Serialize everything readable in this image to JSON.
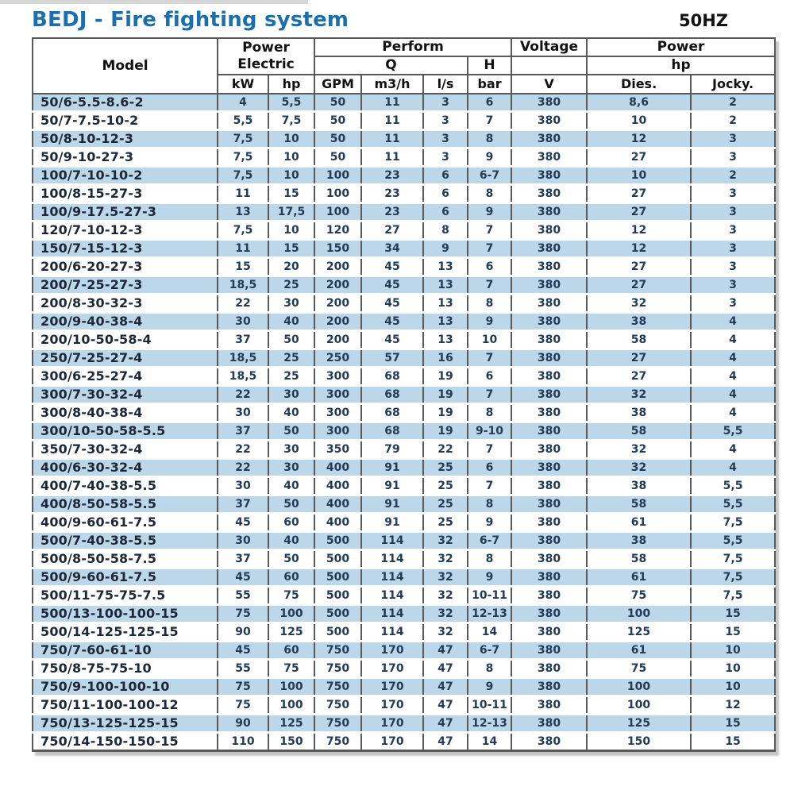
{
  "page": {
    "title": "BEDJ - Fire fighting system",
    "frequency": "50HZ"
  },
  "table": {
    "header": {
      "model": "Model",
      "power_electric": [
        "Power",
        "Electric"
      ],
      "perform": "Perform",
      "q": "Q",
      "h": "H",
      "voltage": "Voltage",
      "power": "Power",
      "hp": "hp",
      "units": [
        "kW",
        "hp",
        "GPM",
        "m3/h",
        "l/s",
        "bar",
        "V",
        "Dies.",
        "Jocky."
      ]
    }
  },
  "colors": {
    "title_blue": "#1c6fad",
    "row_blue": "#bcd6ea",
    "border_dark": "#595959",
    "data_text": "#243b55",
    "model_text": "#1c2836",
    "header_text": "#111111",
    "shadow": "#c6c6c6"
  },
  "chart_data": {
    "type": "table",
    "title": "BEDJ - Fire fighting system",
    "subtitle": "50HZ",
    "columns": [
      "Model",
      "Power Electric kW",
      "Power Electric hp",
      "Perform Q GPM",
      "Perform Q m3/h",
      "Perform Q l/s",
      "Perform H bar",
      "Voltage V",
      "Power hp Dies.",
      "Power hp Jocky."
    ],
    "rows": [
      [
        "50/6-5.5-8.6-2",
        "4",
        "5,5",
        "50",
        "11",
        "3",
        "6",
        "380",
        "8,6",
        "2"
      ],
      [
        "50/7-7.5-10-2",
        "5,5",
        "7,5",
        "50",
        "11",
        "3",
        "7",
        "380",
        "10",
        "2"
      ],
      [
        "50/8-10-12-3",
        "7,5",
        "10",
        "50",
        "11",
        "3",
        "8",
        "380",
        "12",
        "3"
      ],
      [
        "50/9-10-27-3",
        "7,5",
        "10",
        "50",
        "11",
        "3",
        "9",
        "380",
        "27",
        "3"
      ],
      [
        "100/7-10-10-2",
        "7,5",
        "10",
        "100",
        "23",
        "6",
        "6-7",
        "380",
        "10",
        "2"
      ],
      [
        "100/8-15-27-3",
        "11",
        "15",
        "100",
        "23",
        "6",
        "8",
        "380",
        "27",
        "3"
      ],
      [
        "100/9-17.5-27-3",
        "13",
        "17,5",
        "100",
        "23",
        "6",
        "9",
        "380",
        "27",
        "3"
      ],
      [
        "120/7-10-12-3",
        "7,5",
        "10",
        "120",
        "27",
        "8",
        "7",
        "380",
        "12",
        "3"
      ],
      [
        "150/7-15-12-3",
        "11",
        "15",
        "150",
        "34",
        "9",
        "7",
        "380",
        "12",
        "3"
      ],
      [
        "200/6-20-27-3",
        "15",
        "20",
        "200",
        "45",
        "13",
        "6",
        "380",
        "27",
        "3"
      ],
      [
        "200/7-25-27-3",
        "18,5",
        "25",
        "200",
        "45",
        "13",
        "7",
        "380",
        "27",
        "3"
      ],
      [
        "200/8-30-32-3",
        "22",
        "30",
        "200",
        "45",
        "13",
        "8",
        "380",
        "32",
        "3"
      ],
      [
        "200/9-40-38-4",
        "30",
        "40",
        "200",
        "45",
        "13",
        "9",
        "380",
        "38",
        "4"
      ],
      [
        "200/10-50-58-4",
        "37",
        "50",
        "200",
        "45",
        "13",
        "10",
        "380",
        "58",
        "4"
      ],
      [
        "250/7-25-27-4",
        "18,5",
        "25",
        "250",
        "57",
        "16",
        "7",
        "380",
        "27",
        "4"
      ],
      [
        "300/6-25-27-4",
        "18,5",
        "25",
        "300",
        "68",
        "19",
        "6",
        "380",
        "27",
        "4"
      ],
      [
        "300/7-30-32-4",
        "22",
        "30",
        "300",
        "68",
        "19",
        "7",
        "380",
        "32",
        "4"
      ],
      [
        "300/8-40-38-4",
        "30",
        "40",
        "300",
        "68",
        "19",
        "8",
        "380",
        "38",
        "4"
      ],
      [
        "300/10-50-58-5.5",
        "37",
        "50",
        "300",
        "68",
        "19",
        "9-10",
        "380",
        "58",
        "5,5"
      ],
      [
        "350/7-30-32-4",
        "22",
        "30",
        "350",
        "79",
        "22",
        "7",
        "380",
        "32",
        "4"
      ],
      [
        "400/6-30-32-4",
        "22",
        "30",
        "400",
        "91",
        "25",
        "6",
        "380",
        "32",
        "4"
      ],
      [
        "400/7-40-38-5.5",
        "30",
        "40",
        "400",
        "91",
        "25",
        "7",
        "380",
        "38",
        "5,5"
      ],
      [
        "400/8-50-58-5.5",
        "37",
        "50",
        "400",
        "91",
        "25",
        "8",
        "380",
        "58",
        "5,5"
      ],
      [
        "400/9-60-61-7.5",
        "45",
        "60",
        "400",
        "91",
        "25",
        "9",
        "380",
        "61",
        "7,5"
      ],
      [
        "500/7-40-38-5.5",
        "30",
        "40",
        "500",
        "114",
        "32",
        "6-7",
        "380",
        "38",
        "5,5"
      ],
      [
        "500/8-50-58-7.5",
        "37",
        "50",
        "500",
        "114",
        "32",
        "8",
        "380",
        "58",
        "7,5"
      ],
      [
        "500/9-60-61-7.5",
        "45",
        "60",
        "500",
        "114",
        "32",
        "9",
        "380",
        "61",
        "7,5"
      ],
      [
        "500/11-75-75-7.5",
        "55",
        "75",
        "500",
        "114",
        "32",
        "10-11",
        "380",
        "75",
        "7,5"
      ],
      [
        "500/13-100-100-15",
        "75",
        "100",
        "500",
        "114",
        "32",
        "12-13",
        "380",
        "100",
        "15"
      ],
      [
        "500/14-125-125-15",
        "90",
        "125",
        "500",
        "114",
        "32",
        "14",
        "380",
        "125",
        "15"
      ],
      [
        "750/7-60-61-10",
        "45",
        "60",
        "750",
        "170",
        "47",
        "6-7",
        "380",
        "61",
        "10"
      ],
      [
        "750/8-75-75-10",
        "55",
        "75",
        "750",
        "170",
        "47",
        "8",
        "380",
        "75",
        "10"
      ],
      [
        "750/9-100-100-10",
        "75",
        "100",
        "750",
        "170",
        "47",
        "9",
        "380",
        "100",
        "10"
      ],
      [
        "750/11-100-100-12",
        "75",
        "100",
        "750",
        "170",
        "47",
        "10-11",
        "380",
        "100",
        "12"
      ],
      [
        "750/13-125-125-15",
        "90",
        "125",
        "750",
        "170",
        "47",
        "12-13",
        "380",
        "125",
        "15"
      ],
      [
        "750/14-150-150-15",
        "110",
        "150",
        "750",
        "170",
        "47",
        "14",
        "380",
        "150",
        "15"
      ]
    ]
  }
}
